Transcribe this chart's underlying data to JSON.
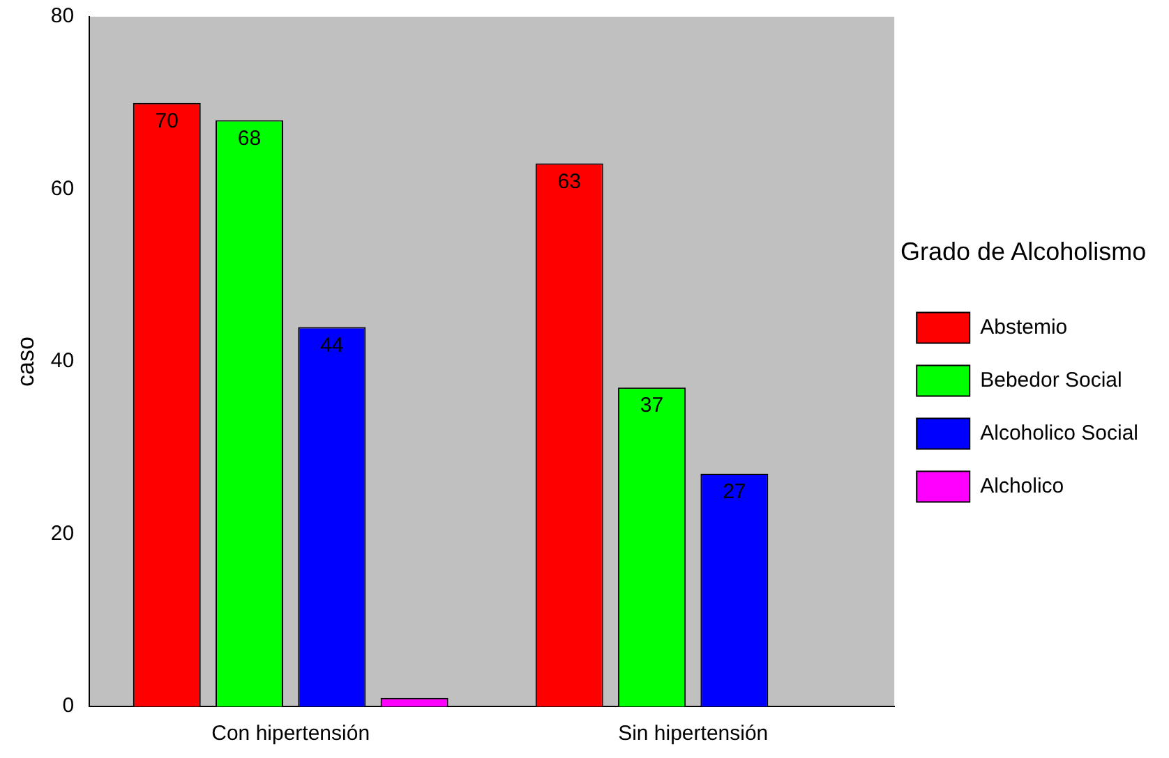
{
  "chart_data": {
    "type": "bar",
    "ylabel": "caso",
    "legend_title": "Grado de Alcoholismo",
    "categories": [
      "Con hipertensión",
      "Sin hipertensión"
    ],
    "series": [
      {
        "name": "Abstemio",
        "color": "#ff0000",
        "values": [
          70,
          63
        ],
        "value_labels": [
          "70",
          "63"
        ]
      },
      {
        "name": "Bebedor Social",
        "color": "#00ff00",
        "values": [
          68,
          37
        ],
        "value_labels": [
          "68",
          "37"
        ]
      },
      {
        "name": "Alcoholico Social",
        "color": "#0000ff",
        "values": [
          44,
          27
        ],
        "value_labels": [
          "44",
          "27"
        ]
      },
      {
        "name": "Alcholico",
        "color": "#ff00ff",
        "values": [
          1,
          null
        ],
        "value_labels": [
          null,
          null
        ]
      }
    ],
    "ylim": [
      0,
      80
    ],
    "yticks": [
      0,
      20,
      40,
      60,
      80
    ],
    "grid": false,
    "legend": "right"
  }
}
